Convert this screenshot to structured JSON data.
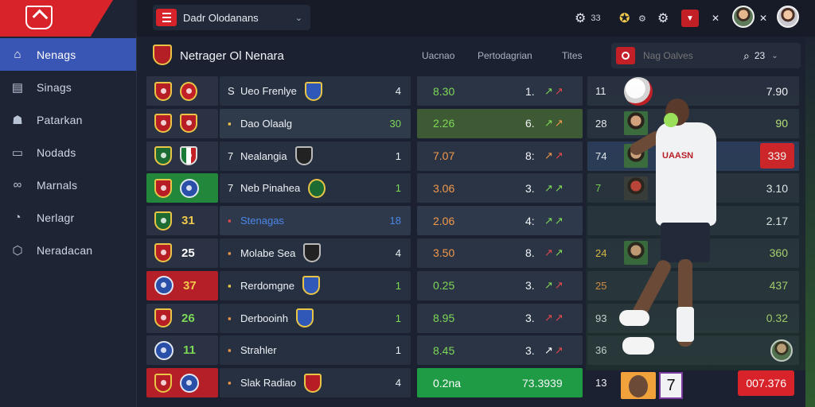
{
  "topbar": {
    "app_title": "Dadr Olodanans",
    "count1": "33",
    "count2": "⚙"
  },
  "sidebar": {
    "items": [
      {
        "label": "Nenags",
        "icon": "home-icon"
      },
      {
        "label": "Sinags",
        "icon": "book-icon"
      },
      {
        "label": "Patarkan",
        "icon": "users-icon"
      },
      {
        "label": "Nodads",
        "icon": "calendar-icon"
      },
      {
        "label": "Marnals",
        "icon": "link-icon"
      },
      {
        "label": "Nerlagr",
        "icon": "chart-icon"
      },
      {
        "label": "Neradacan",
        "icon": "settings-icon"
      }
    ]
  },
  "header": {
    "title": "Netrager Ol Nenara",
    "col1": "Uacnao",
    "col2": "Pertodagrian",
    "col3": "Tites",
    "search_placeholder": "Nag Oalves",
    "search_count": "23"
  },
  "rows": [
    {
      "rank": "",
      "num": "S",
      "team": "Ueo Frenlye",
      "val": "4",
      "odd": "8.30",
      "odd2": "1.",
      "trend": "↗↗",
      "rnum": "11",
      "rval": "7.90"
    },
    {
      "rank": "",
      "num": "",
      "team": "Dao Olaalg",
      "val": "30",
      "odd": "2.26",
      "odd2": "6.",
      "trend": "↗↗",
      "rnum": "28",
      "rval": "90"
    },
    {
      "rank": "",
      "num": "7",
      "team": "Nealangia",
      "val": "1",
      "odd": "7.07",
      "odd2": "8:",
      "trend": "↗↗",
      "rnum": "74",
      "rval": "339"
    },
    {
      "rank": "",
      "num": "7",
      "team": "Neb Pinahea",
      "val": "1",
      "odd": "3.06",
      "odd2": "3.",
      "trend": "↗↗",
      "rnum": "7",
      "rval": "3.10"
    },
    {
      "rank": "31",
      "num": "",
      "team": "Stenagas",
      "val": "18",
      "odd": "2.06",
      "odd2": "4:",
      "trend": "↗↗",
      "rnum": "",
      "rval": "2.17"
    },
    {
      "rank": "25",
      "num": "",
      "team": "Molabe Sea",
      "val": "4",
      "odd": "3.50",
      "odd2": "8.",
      "trend": "↗↗",
      "rnum": "24",
      "rval": "360"
    },
    {
      "rank": "37",
      "num": "",
      "team": "Rerdomgne",
      "val": "1",
      "odd": "0.25",
      "odd2": "3.",
      "trend": "↗↗",
      "rnum": "25",
      "rval": "437"
    },
    {
      "rank": "26",
      "num": "",
      "team": "Derbooinh",
      "val": "1",
      "odd": "8.95",
      "odd2": "3.",
      "trend": "↗↗",
      "rnum": "93",
      "rval": "0.32"
    },
    {
      "rank": "11",
      "num": "",
      "team": "Strahler",
      "val": "1",
      "odd": "8.45",
      "odd2": "3.",
      "trend": "↗↗",
      "rnum": "36",
      "rval": ""
    },
    {
      "rank": "",
      "num": "",
      "team": "Slak Radiao",
      "val": "4",
      "odd": "0.2na",
      "odd2": "73.3939",
      "trend": "",
      "rnum": "13",
      "rval": "007.376"
    }
  ],
  "player": {
    "shirt_text": "UAASN",
    "number": "7"
  },
  "colors": {
    "accent": "#d8232a",
    "active_nav": "#3a56b5",
    "green": "#7ed957"
  }
}
